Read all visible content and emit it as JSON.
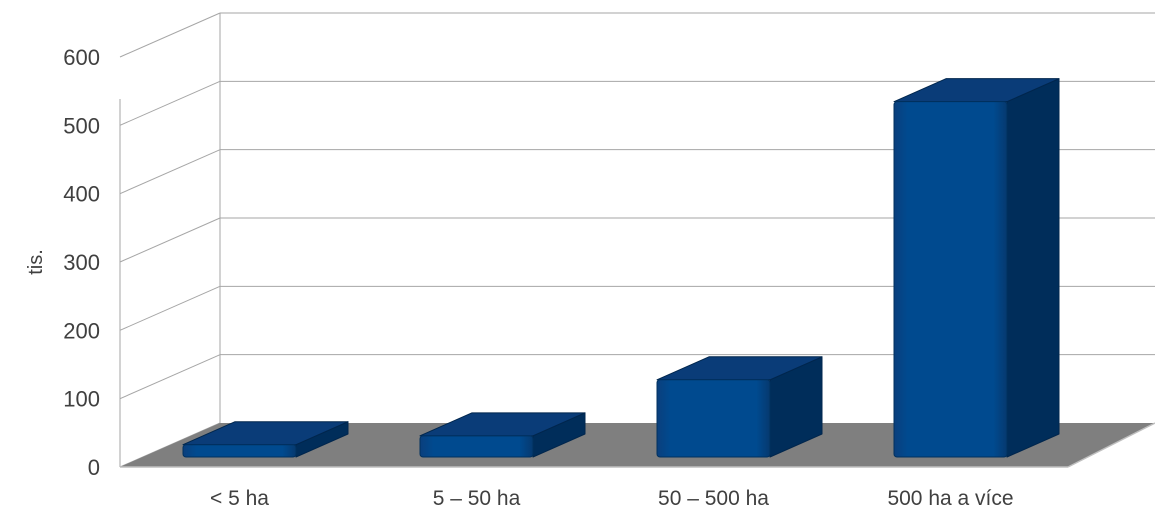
{
  "chart_data": {
    "type": "bar",
    "style": "3d-column",
    "title": "",
    "xlabel": "",
    "ylabel": "tis.",
    "categories": [
      "< 5 ha",
      "5 – 50 ha",
      "50 – 500 ha",
      "500 ha a více"
    ],
    "values": [
      18,
      31,
      113,
      520
    ],
    "ylim": [
      0,
      600
    ],
    "yticks": [
      "0",
      "100",
      "200",
      "300",
      "400",
      "500",
      "600"
    ],
    "grid": true,
    "legend": "none",
    "colors": {
      "bar_front": "#004a8f",
      "bar_top": "#0a3c78",
      "bar_side": "#002d5a",
      "floor": "#7f7f7f",
      "grid": "#a6a6a6"
    }
  }
}
